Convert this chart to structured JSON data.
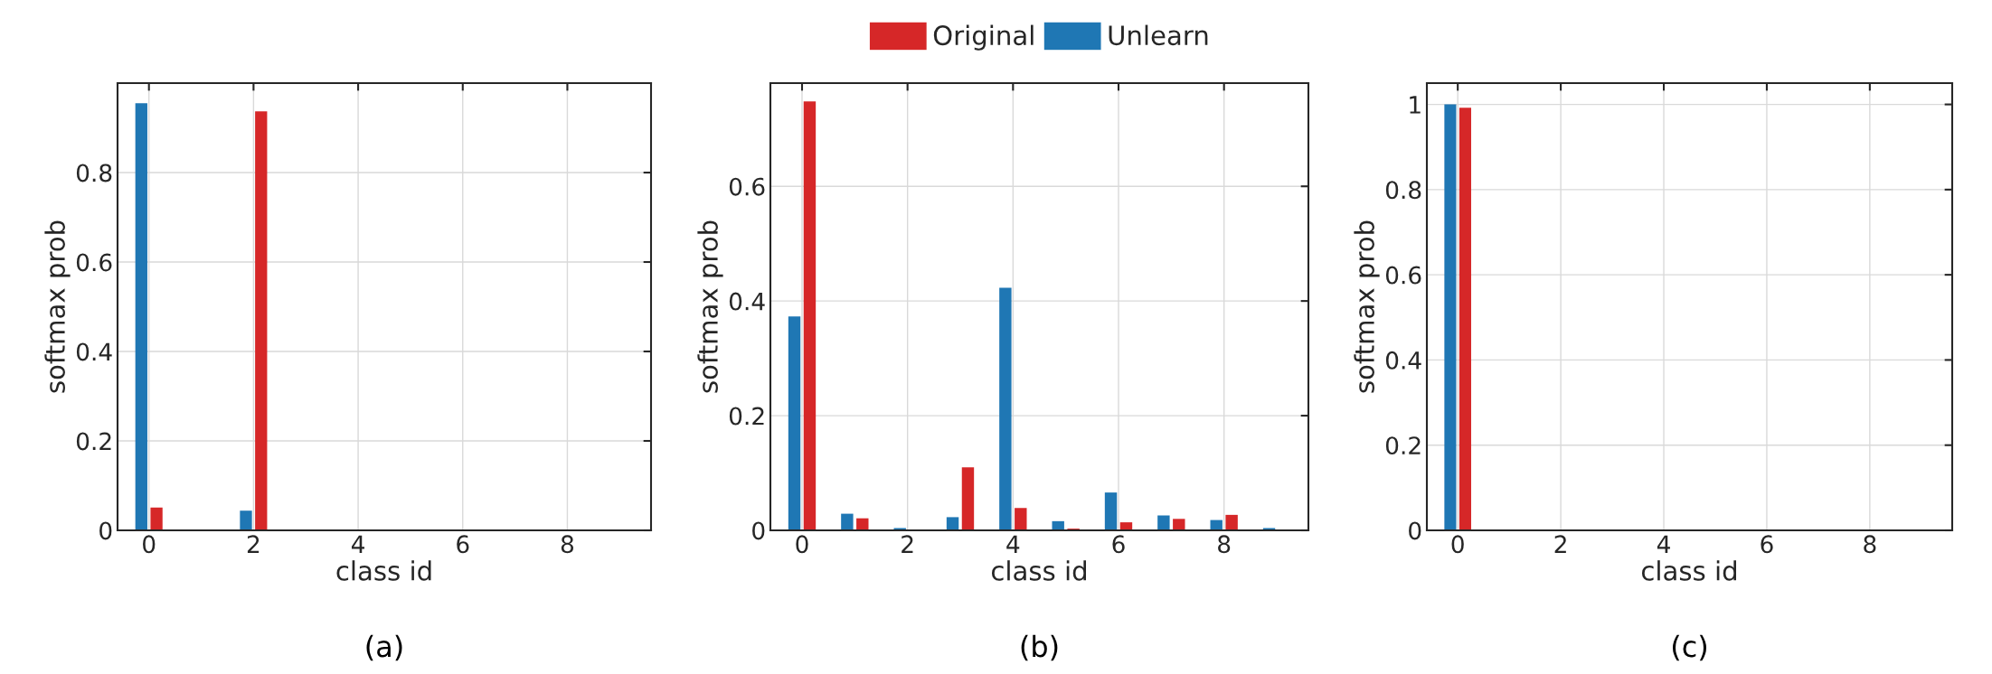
{
  "chart_data": [
    {
      "type": "bar",
      "xlabel": "class id",
      "ylabel": "softmax prob",
      "annotations": [
        "(a)"
      ],
      "x": [
        0,
        1,
        2,
        3,
        4,
        5,
        6,
        7,
        8,
        9
      ],
      "xlim": [
        -0.6,
        9.6
      ],
      "xticks": [
        0,
        2,
        4,
        6,
        8
      ],
      "ylim": [
        0,
        1.0
      ],
      "yticks": [
        0,
        0.2,
        0.4,
        0.6,
        0.8
      ],
      "grid": true,
      "series": [
        {
          "color": "#1f77b4",
          "values": [
            0.955,
            0,
            0.044,
            0,
            0,
            0,
            0,
            0,
            0,
            0
          ]
        },
        {
          "color": "#d62728",
          "values": [
            0.051,
            0,
            0.937,
            0,
            0,
            0,
            0,
            0,
            0,
            0
          ]
        }
      ]
    },
    {
      "type": "bar",
      "xlabel": "class id",
      "ylabel": "softmax prob",
      "annotations": [
        "(b)"
      ],
      "x": [
        0,
        1,
        2,
        3,
        4,
        5,
        6,
        7,
        8,
        9
      ],
      "xlim": [
        -0.6,
        9.6
      ],
      "xticks": [
        0,
        2,
        4,
        6,
        8
      ],
      "ylim": [
        0,
        0.78
      ],
      "yticks": [
        0,
        0.2,
        0.4,
        0.6
      ],
      "grid": true,
      "legend": "top",
      "series": [
        {
          "name": "Unlearn",
          "color": "#1f77b4",
          "values": [
            0.373,
            0.029,
            0.004,
            0.023,
            0.423,
            0.016,
            0.066,
            0.026,
            0.018,
            0.004
          ]
        },
        {
          "name": "Original",
          "color": "#d62728",
          "values": [
            0.748,
            0.021,
            0,
            0.11,
            0.039,
            0.003,
            0.014,
            0.02,
            0.027,
            0
          ]
        }
      ]
    },
    {
      "type": "bar",
      "xlabel": "class id",
      "ylabel": "softmax prob",
      "annotations": [
        "(c)"
      ],
      "x": [
        0,
        1,
        2,
        3,
        4,
        5,
        6,
        7,
        8,
        9
      ],
      "xlim": [
        -0.6,
        9.6
      ],
      "xticks": [
        0,
        2,
        4,
        6,
        8
      ],
      "ylim": [
        0,
        1.05
      ],
      "yticks": [
        0,
        0.2,
        0.4,
        0.6,
        0.8,
        1
      ],
      "grid": true,
      "series": [
        {
          "color": "#1f77b4",
          "values": [
            1.0,
            0,
            0,
            0,
            0,
            0,
            0,
            0,
            0,
            0
          ]
        },
        {
          "color": "#d62728",
          "values": [
            0.992,
            0,
            0,
            0,
            0,
            0,
            0,
            0,
            0,
            0
          ]
        }
      ]
    }
  ]
}
